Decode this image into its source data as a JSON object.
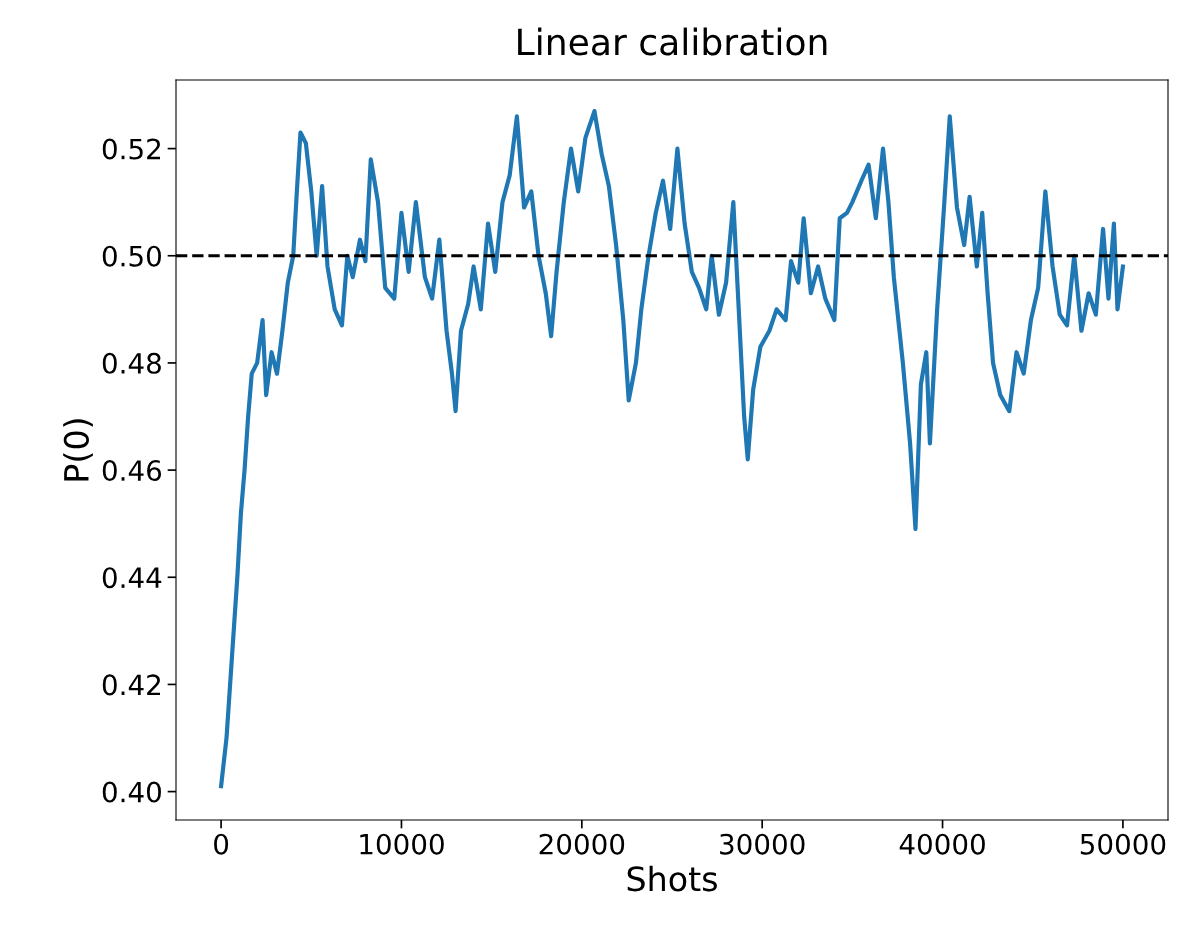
{
  "chart_data": {
    "type": "line",
    "title": "Linear calibration",
    "xlabel": "Shots",
    "ylabel": "P(0)",
    "x": [
      0,
      300,
      600,
      900,
      1100,
      1300,
      1500,
      1700,
      2000,
      2300,
      2500,
      2800,
      3100,
      3400,
      3700,
      4000,
      4200,
      4400,
      4700,
      5000,
      5300,
      5600,
      5900,
      6300,
      6700,
      7000,
      7300,
      7700,
      8000,
      8300,
      8700,
      9100,
      9600,
      10000,
      10400,
      10800,
      11300,
      11700,
      12100,
      12500,
      12800,
      13000,
      13300,
      13700,
      14000,
      14400,
      14800,
      15200,
      15600,
      16000,
      16400,
      16800,
      17200,
      17600,
      18000,
      18300,
      18600,
      19000,
      19400,
      19800,
      20200,
      20700,
      21100,
      21500,
      21900,
      22300,
      22600,
      23000,
      23300,
      23700,
      24100,
      24500,
      24900,
      25300,
      25700,
      26100,
      26500,
      26900,
      27200,
      27600,
      28000,
      28400,
      28700,
      29000,
      29200,
      29500,
      29900,
      30400,
      30800,
      31300,
      31600,
      32000,
      32300,
      32700,
      33100,
      33500,
      34000,
      34300,
      34700,
      35000,
      35500,
      35900,
      36300,
      36700,
      37000,
      37300,
      37800,
      38200,
      38500,
      38800,
      39100,
      39300,
      39700,
      40100,
      40400,
      40800,
      41200,
      41500,
      41900,
      42200,
      42500,
      42800,
      43200,
      43700,
      44100,
      44500,
      44900,
      45300,
      45700,
      46100,
      46500,
      46900,
      47300,
      47700,
      48100,
      48500,
      48900,
      49200,
      49500,
      49700,
      50000
    ],
    "series": [
      {
        "color": "#1f77b4",
        "values": [
          0.401,
          0.41,
          0.425,
          0.44,
          0.452,
          0.46,
          0.47,
          0.478,
          0.48,
          0.488,
          0.474,
          0.482,
          0.478,
          0.486,
          0.495,
          0.5,
          0.512,
          0.523,
          0.521,
          0.512,
          0.5,
          0.513,
          0.498,
          0.49,
          0.487,
          0.5,
          0.496,
          0.503,
          0.499,
          0.518,
          0.51,
          0.494,
          0.492,
          0.508,
          0.497,
          0.51,
          0.496,
          0.492,
          0.503,
          0.486,
          0.478,
          0.471,
          0.486,
          0.491,
          0.498,
          0.49,
          0.506,
          0.497,
          0.51,
          0.515,
          0.526,
          0.509,
          0.512,
          0.5,
          0.493,
          0.485,
          0.497,
          0.51,
          0.52,
          0.512,
          0.522,
          0.527,
          0.519,
          0.513,
          0.502,
          0.488,
          0.473,
          0.48,
          0.49,
          0.5,
          0.508,
          0.514,
          0.505,
          0.52,
          0.506,
          0.497,
          0.494,
          0.49,
          0.5,
          0.489,
          0.495,
          0.51,
          0.49,
          0.47,
          0.462,
          0.475,
          0.483,
          0.486,
          0.49,
          0.488,
          0.499,
          0.495,
          0.507,
          0.493,
          0.498,
          0.492,
          0.488,
          0.507,
          0.508,
          0.51,
          0.514,
          0.517,
          0.507,
          0.52,
          0.51,
          0.496,
          0.48,
          0.465,
          0.449,
          0.476,
          0.482,
          0.465,
          0.49,
          0.51,
          0.526,
          0.509,
          0.502,
          0.511,
          0.498,
          0.508,
          0.493,
          0.48,
          0.474,
          0.471,
          0.482,
          0.478,
          0.488,
          0.494,
          0.512,
          0.498,
          0.489,
          0.487,
          0.5,
          0.486,
          0.493,
          0.489,
          0.505,
          0.492,
          0.506,
          0.49,
          0.498
        ]
      }
    ],
    "xlim": [
      -2500,
      52500
    ],
    "xticks": [
      0,
      10000,
      20000,
      30000,
      40000,
      50000
    ],
    "ylim": [
      0.3947,
      0.5328
    ],
    "yticks": [
      {
        "value": 0.4,
        "label": "0.40"
      },
      {
        "value": 0.42,
        "label": "0.42"
      },
      {
        "value": 0.44,
        "label": "0.44"
      },
      {
        "value": 0.46,
        "label": "0.46"
      },
      {
        "value": 0.48,
        "label": "0.48"
      },
      {
        "value": 0.5,
        "label": "0.50"
      },
      {
        "value": 0.52,
        "label": "0.52"
      }
    ],
    "ref_lines": [
      {
        "axis": "y",
        "value": 0.5,
        "color": "#000000",
        "line_style": "dashed"
      }
    ],
    "marker": "none",
    "line_style": "solid"
  }
}
